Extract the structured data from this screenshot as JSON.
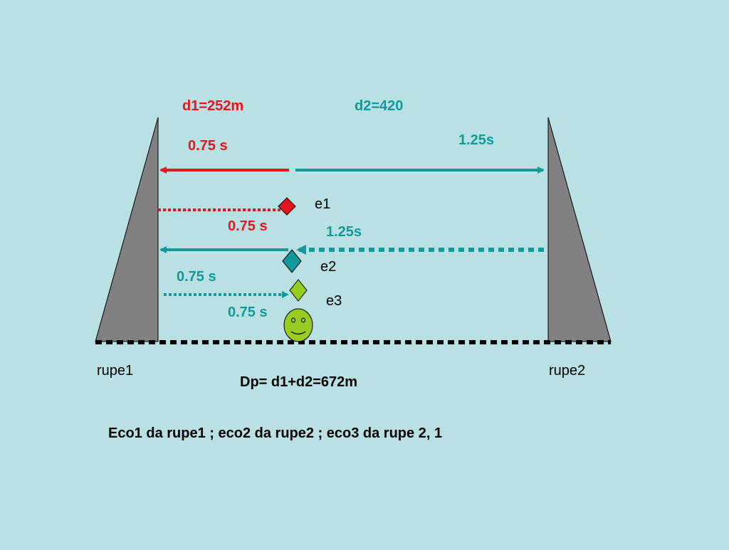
{
  "colors": {
    "background": "#b9e0e3",
    "red": "#e8141e",
    "teal": "#119a9c",
    "cliff": "#808080",
    "ground": "#000000",
    "face": "#99cc22"
  },
  "labels": {
    "d1": "d1=252m",
    "d2": "d2=420",
    "t_d1": "0.75 s",
    "t_d2": "1.25s",
    "e1": "e1",
    "e1_time": "0.75 s",
    "e2_return_time": "1.25s",
    "e2": "e2",
    "e3_time_a": "0.75 s",
    "e3": "e3",
    "e3_time_b": "0.75 s",
    "cliff1": "rupe1",
    "cliff2": "rupe2",
    "total": "Dp= d1+d2=672m",
    "caption": "Eco1 da rupe1 ; eco2 da rupe2 ; eco3 da rupe 2, 1"
  },
  "icons": {
    "echo1_marker": "red-diamond-icon",
    "echo2_marker": "teal-diamond-icon",
    "echo3_marker": "green-diamond-icon",
    "person": "smiley-face-icon"
  }
}
